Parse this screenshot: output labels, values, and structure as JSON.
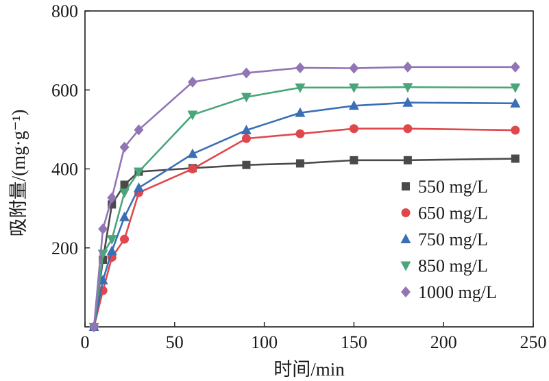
{
  "chart_data": {
    "type": "line",
    "xlabel": "时间/min",
    "ylabel": "吸附量/(mg·g⁻¹)",
    "xlim": [
      0,
      250
    ],
    "ylim": [
      0,
      800
    ],
    "xticks": [
      0,
      50,
      100,
      150,
      200,
      250
    ],
    "yticks": [
      200,
      400,
      600,
      800
    ],
    "grid": false,
    "legend_position": "right",
    "series": [
      {
        "name": "550 mg/L",
        "marker": "square",
        "color": "#4a4a4a",
        "x": [
          5,
          10,
          15,
          22,
          30,
          60,
          90,
          120,
          150,
          180,
          240
        ],
        "y": [
          0,
          170,
          310,
          360,
          393,
          402,
          410,
          414,
          422,
          422,
          426
        ]
      },
      {
        "name": "650 mg/L",
        "marker": "circle",
        "color": "#e0474c",
        "x": [
          5,
          10,
          15,
          22,
          30,
          60,
          90,
          120,
          150,
          180,
          240
        ],
        "y": [
          0,
          92,
          176,
          222,
          340,
          400,
          477,
          489,
          502,
          502,
          498
        ]
      },
      {
        "name": "750 mg/L",
        "marker": "triangle-up",
        "color": "#3a6fb5",
        "x": [
          5,
          10,
          15,
          22,
          30,
          60,
          90,
          120,
          150,
          180,
          240
        ],
        "y": [
          0,
          118,
          192,
          278,
          352,
          438,
          498,
          542,
          560,
          568,
          566
        ]
      },
      {
        "name": "850 mg/L",
        "marker": "triangle-down",
        "color": "#4aa67a",
        "x": [
          5,
          10,
          15,
          22,
          30,
          60,
          90,
          120,
          150,
          180,
          240
        ],
        "y": [
          0,
          185,
          222,
          340,
          393,
          537,
          582,
          606,
          606,
          607,
          606
        ]
      },
      {
        "name": "1000 mg/L",
        "marker": "diamond",
        "color": "#9275b5",
        "x": [
          5,
          10,
          15,
          22,
          30,
          60,
          90,
          120,
          150,
          180,
          240
        ],
        "y": [
          0,
          248,
          327,
          455,
          499,
          620,
          643,
          656,
          655,
          658,
          658
        ]
      }
    ]
  }
}
